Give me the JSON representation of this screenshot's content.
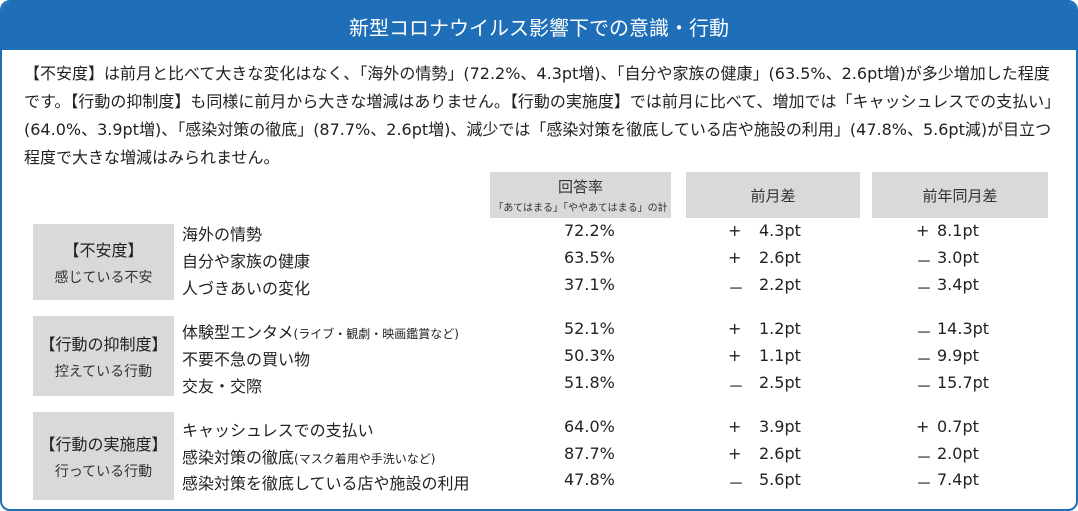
{
  "title": "新型コロナウイルス影響下での意識・行動",
  "intro": "【不安度】は前月と比べて大きな変化はなく、「海外の情勢」(72.2%、4.3pt増)、「自分や家族の健康」(63.5%、2.6pt増)が多少増加した程度です。【行動の抑制度】も同様に前月から大きな増減はありません。【行動の実施度】では前月に比べて、増加では「キャッシュレスでの支払い」(64.0%、3.9pt増)、「感染対策の徹底」(87.7%、2.6pt増)、減少では「感染対策を徹底している店や施設の利用」(47.8%、5.6pt減)が目立つ程度で大きな増減はみられません。",
  "columns": {
    "rate": "回答率",
    "rate_note": "「あてはまる」「ややあてはまる」の計",
    "prev_month": "前月差",
    "prev_year": "前年同月差"
  },
  "groups": [
    {
      "label": "【不安度】",
      "sub": "感じている不安",
      "rows": [
        {
          "name": "海外の情勢",
          "note": "",
          "rate": "72.2%",
          "m_sign": "+",
          "m_val": "4.3pt",
          "y_sign": "+",
          "y_val": "8.1pt"
        },
        {
          "name": "自分や家族の健康",
          "note": "",
          "rate": "63.5%",
          "m_sign": "+",
          "m_val": "2.6pt",
          "y_sign": "－",
          "y_val": "3.0pt"
        },
        {
          "name": "人づきあいの変化",
          "note": "",
          "rate": "37.1%",
          "m_sign": "－",
          "m_val": "2.2pt",
          "y_sign": "－",
          "y_val": "3.4pt"
        }
      ]
    },
    {
      "label": "【行動の抑制度】",
      "sub": "控えている行動",
      "rows": [
        {
          "name": "体験型エンタメ",
          "note": "(ライブ・観劇・映画鑑賞など)",
          "rate": "52.1%",
          "m_sign": "+",
          "m_val": "1.2pt",
          "y_sign": "－",
          "y_val": "14.3pt"
        },
        {
          "name": "不要不急の買い物",
          "note": "",
          "rate": "50.3%",
          "m_sign": "+",
          "m_val": "1.1pt",
          "y_sign": "－",
          "y_val": "9.9pt"
        },
        {
          "name": "交友・交際",
          "note": "",
          "rate": "51.8%",
          "m_sign": "－",
          "m_val": "2.5pt",
          "y_sign": "－",
          "y_val": "15.7pt"
        }
      ]
    },
    {
      "label": "【行動の実施度】",
      "sub": "行っている行動",
      "rows": [
        {
          "name": "キャッシュレスでの支払い",
          "note": "",
          "rate": "64.0%",
          "m_sign": "+",
          "m_val": "3.9pt",
          "y_sign": "+",
          "y_val": "0.7pt"
        },
        {
          "name": "感染対策の徹底",
          "note": "(マスク着用や手洗いなど)",
          "rate": "87.7%",
          "m_sign": "+",
          "m_val": "2.6pt",
          "y_sign": "－",
          "y_val": "2.0pt"
        },
        {
          "name": "感染対策を徹底している店や施設の利用",
          "note": "",
          "rate": "47.8%",
          "m_sign": "－",
          "m_val": "5.6pt",
          "y_sign": "－",
          "y_val": "7.4pt"
        }
      ]
    }
  ]
}
